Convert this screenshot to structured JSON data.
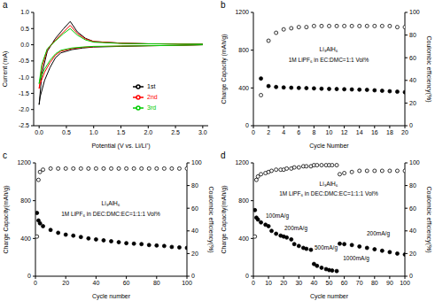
{
  "chart_data": [
    {
      "title": "a",
      "type": "line",
      "x_label": "Potential (V vs. Li/Li⁺)",
      "y_label": "Current (mA)",
      "xlim": [
        -0.1,
        3.1
      ],
      "xticks": [
        {
          "value": 0,
          "label": "0.0"
        },
        0.5,
        {
          "value": 1,
          "label": "1.0"
        },
        1.5,
        {
          "value": 2,
          "label": "2.0"
        },
        2.5,
        {
          "value": 3,
          "label": "3.0"
        }
      ],
      "ylim": [
        -2.5,
        1.0
      ],
      "yticks": [
        -2.5,
        {
          "value": -2,
          "label": "-2.0"
        },
        -1.5,
        {
          "value": -1,
          "label": "-1.0"
        },
        -0.5,
        {
          "value": 0,
          "label": "0.0"
        },
        0.5,
        {
          "value": 1,
          "label": "1.0"
        }
      ],
      "legend": "lower right",
      "series": [
        {
          "name": "1st",
          "color": "#000000",
          "x": [
            3.0,
            2.5,
            2.0,
            1.5,
            1.0,
            0.8,
            0.6,
            0.4,
            0.3,
            0.2,
            0.1,
            0.02,
            0.0,
            0.05,
            0.15,
            0.3,
            0.45,
            0.57,
            0.7,
            0.85,
            1.0,
            1.5,
            2.0,
            2.5,
            3.0
          ],
          "values": [
            0.0,
            -0.02,
            -0.03,
            -0.05,
            -0.07,
            -0.1,
            -0.15,
            -0.25,
            -0.4,
            -0.7,
            -1.1,
            -1.6,
            -1.85,
            -0.9,
            -0.2,
            0.2,
            0.5,
            0.72,
            0.4,
            0.2,
            0.1,
            0.05,
            0.03,
            0.03,
            0.02
          ]
        },
        {
          "name": "2nd",
          "color": "#ff0000",
          "x": [
            3.0,
            2.5,
            2.0,
            1.5,
            1.0,
            0.8,
            0.6,
            0.4,
            0.3,
            0.2,
            0.1,
            0.02,
            0.0,
            0.05,
            0.15,
            0.3,
            0.45,
            0.57,
            0.7,
            0.85,
            1.0,
            1.5,
            2.0,
            2.5,
            3.0
          ],
          "values": [
            0.0,
            -0.02,
            -0.03,
            -0.04,
            -0.06,
            -0.08,
            -0.12,
            -0.2,
            -0.32,
            -0.55,
            -0.85,
            -1.2,
            -1.35,
            -0.7,
            -0.15,
            0.15,
            0.4,
            0.6,
            0.35,
            0.18,
            0.1,
            0.05,
            0.03,
            0.03,
            0.02
          ]
        },
        {
          "name": "3rd",
          "color": "#00cc00",
          "x": [
            3.0,
            2.5,
            2.0,
            1.5,
            1.0,
            0.8,
            0.6,
            0.4,
            0.3,
            0.2,
            0.1,
            0.02,
            0.0,
            0.05,
            0.15,
            0.3,
            0.45,
            0.57,
            0.7,
            0.85,
            1.0,
            1.5,
            2.0,
            2.5,
            3.0
          ],
          "values": [
            0.0,
            -0.02,
            -0.03,
            -0.04,
            -0.05,
            -0.07,
            -0.1,
            -0.17,
            -0.28,
            -0.48,
            -0.75,
            -1.05,
            -1.2,
            -0.6,
            -0.12,
            0.12,
            0.35,
            0.5,
            0.3,
            0.15,
            0.08,
            0.04,
            0.03,
            0.02,
            0.02
          ]
        }
      ]
    },
    {
      "title": "b",
      "type": "scatter",
      "x_label": "Cycle Number",
      "y_label": "Charge Capacity (mAh/g)",
      "y2_label": "Coulombic efficiency(%)",
      "annotations": [
        "Li₃AlH₆",
        "1M LiPF₆ in EC:DMC=1:1 Vol%"
      ],
      "xlim": [
        0,
        20
      ],
      "xticks": [
        0,
        2,
        4,
        6,
        8,
        10,
        12,
        14,
        16,
        18,
        20
      ],
      "ylim": [
        0,
        1200
      ],
      "yticks": [
        0,
        400,
        800,
        1200
      ],
      "y2lim": [
        0,
        100
      ],
      "y2ticks": [
        0,
        20,
        40,
        60,
        80,
        100
      ],
      "x": [
        1,
        2,
        3,
        4,
        5,
        6,
        7,
        8,
        9,
        10,
        11,
        12,
        13,
        14,
        15,
        16,
        17,
        18,
        19,
        20
      ],
      "series": [
        {
          "name": "Charge Capacity",
          "color": "#000000",
          "marker": "filled_circle",
          "line_style": "none",
          "values": [
            500,
            420,
            410,
            405,
            402,
            400,
            398,
            395,
            392,
            390,
            388,
            386,
            384,
            382,
            380,
            375,
            370,
            365,
            360,
            355
          ]
        },
        {
          "name": "Coulombic efficiency",
          "color": "#000000",
          "marker": "open_circle",
          "line_style": "none",
          "axis": "y2",
          "values": [
            27,
            75,
            82,
            85,
            86,
            87,
            87,
            88,
            88,
            88,
            88,
            88,
            88,
            88,
            88,
            88,
            88,
            88,
            87,
            87
          ]
        }
      ]
    },
    {
      "title": "c",
      "type": "scatter",
      "x_label": "Cycle number",
      "y_label": "Charge Capacity(mAh/g)",
      "y2_label": "Coulombic efficiency(%)",
      "annotations": [
        "Li₃AlH₆",
        "1M LiPF₆ in DEC:DMC:EC=1:1:1 Vol%"
      ],
      "xlim": [
        0,
        100
      ],
      "xticks": [
        0,
        20,
        40,
        60,
        80,
        100
      ],
      "ylim": [
        0,
        1200
      ],
      "yticks": [
        0,
        400,
        800,
        1200
      ],
      "y2lim": [
        0,
        100
      ],
      "y2ticks": [
        0,
        20,
        40,
        60,
        80,
        100
      ],
      "x": [
        1,
        2,
        3,
        5,
        10,
        15,
        20,
        25,
        30,
        35,
        40,
        45,
        50,
        55,
        60,
        65,
        70,
        75,
        80,
        85,
        90,
        95,
        100
      ],
      "series": [
        {
          "name": "Charge Capacity",
          "color": "#000000",
          "marker": "filled_circle",
          "line_style": "none",
          "values": [
            670,
            590,
            560,
            530,
            490,
            460,
            440,
            430,
            415,
            400,
            390,
            380,
            370,
            360,
            350,
            345,
            340,
            330,
            325,
            320,
            310,
            305,
            300
          ]
        },
        {
          "name": "Coulombic efficiency",
          "color": "#000000",
          "marker": "open_circle",
          "line_style": "none",
          "axis": "y2",
          "values": [
            35,
            85,
            92,
            94,
            95,
            95,
            95,
            95,
            95,
            95,
            95,
            95,
            95,
            95,
            95,
            95,
            95,
            95,
            95,
            95,
            95,
            95,
            95
          ]
        }
      ]
    },
    {
      "title": "d",
      "type": "scatter",
      "x_label": "Cycle number",
      "y_label": "Charge Capacity(mAh/g)",
      "y2_label": "Coulombic efficiency(%)",
      "annotations": [
        "Li₃AlH₆",
        "1M LiPF₆ in DEC:DMC:EC=1:1:1 Vol%",
        "100mA/g",
        "200mA/g",
        "500mA/g",
        "1000mA/g",
        "200mA/g"
      ],
      "xlim": [
        0,
        100
      ],
      "xticks": [
        0,
        10,
        20,
        30,
        40,
        50,
        60,
        70,
        80,
        90,
        100
      ],
      "ylim": [
        0,
        1200
      ],
      "yticks": [
        0,
        400,
        800,
        1200
      ],
      "y2lim": [
        0,
        100
      ],
      "y2ticks": [
        0,
        20,
        40,
        60,
        80,
        100
      ],
      "x": [
        1,
        2,
        3,
        5,
        8,
        10,
        12,
        15,
        18,
        20,
        22,
        25,
        27,
        30,
        33,
        35,
        38,
        40,
        42,
        45,
        48,
        50,
        52,
        55,
        57,
        60,
        65,
        70,
        75,
        80,
        85,
        90,
        95,
        100
      ],
      "series": [
        {
          "name": "Charge Capacity",
          "color": "#000000",
          "marker": "filled_circle",
          "line_style": "none",
          "values": [
            700,
            620,
            600,
            570,
            545,
            530,
            480,
            450,
            430,
            420,
            410,
            390,
            340,
            320,
            300,
            290,
            280,
            130,
            110,
            90,
            75,
            65,
            60,
            55,
            345,
            340,
            330,
            315,
            300,
            285,
            270,
            255,
            240,
            230
          ]
        },
        {
          "name": "Coulombic efficiency",
          "color": "#000000",
          "marker": "open_circle",
          "line_style": "none",
          "axis": "y2",
          "values": [
            35,
            85,
            88,
            90,
            91,
            92,
            93,
            94,
            94,
            94,
            95,
            95,
            96,
            96,
            97,
            97,
            97,
            98,
            98,
            98,
            98,
            98,
            98,
            98,
            90,
            91,
            92,
            93,
            93,
            93,
            93,
            93,
            93,
            93
          ]
        }
      ]
    }
  ]
}
